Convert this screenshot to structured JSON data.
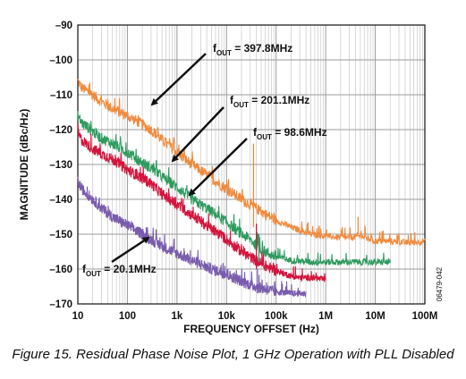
{
  "caption": "Figure 15. Residual Phase Noise Plot, 1 GHz Operation with PLL Disabled",
  "figure_id": "06479-042",
  "chart_data": {
    "type": "line",
    "title": "",
    "xlabel": "FREQUENCY OFFSET (Hz)",
    "ylabel": "MAGNITUDE (dBc/Hz)",
    "xscale": "log",
    "xlim": [
      10,
      100000000
    ],
    "ylim": [
      -170,
      -90
    ],
    "x_ticks": [
      10,
      100,
      1000,
      10000,
      100000,
      1000000,
      10000000,
      100000000
    ],
    "x_tick_labels": [
      "10",
      "100",
      "1k",
      "10k",
      "100k",
      "1M",
      "10M",
      "100M"
    ],
    "y_ticks": [
      -90,
      -100,
      -110,
      -120,
      -130,
      -140,
      -150,
      -160,
      -170
    ],
    "y_tick_labels": [
      "–90",
      "–100",
      "–110",
      "–120",
      "–130",
      "–140",
      "–150",
      "–160",
      "–170"
    ],
    "grid": true,
    "legend": "none",
    "series": [
      {
        "color": "#f08a3c",
        "x": [
          10,
          12,
          20,
          30,
          50,
          100,
          200,
          300,
          500,
          1000,
          2000,
          5000,
          10000,
          20000,
          30000,
          50000,
          100000,
          200000,
          500000,
          1000000,
          2000000,
          3000000,
          5000000,
          10000000,
          20000000,
          50000000,
          100000000
        ],
        "y": [
          -106,
          -108,
          -110,
          -112,
          -114,
          -116,
          -118.5,
          -120,
          -123,
          -126.5,
          -130,
          -134,
          -137,
          -140,
          -141.5,
          -143.5,
          -146,
          -148,
          -150,
          -150.5,
          -151,
          -151,
          -150.5,
          -152,
          -152,
          -152.5,
          -152
        ]
      },
      {
        "color": "#2e9a5e",
        "x": [
          10,
          12,
          20,
          30,
          50,
          100,
          200,
          300,
          500,
          1000,
          2000,
          5000,
          10000,
          20000,
          30000,
          50000,
          100000,
          200000,
          500000,
          1000000,
          2000000,
          5000000,
          10000000,
          20000000
        ],
        "y": [
          -116,
          -118,
          -120.5,
          -122.5,
          -124,
          -126.5,
          -129.5,
          -131,
          -133.5,
          -136.5,
          -140,
          -143.5,
          -146.5,
          -150,
          -151.5,
          -154.5,
          -156.5,
          -157.5,
          -158,
          -158,
          -158,
          -158,
          -158,
          -158
        ]
      },
      {
        "color": "#d2143c",
        "x": [
          10,
          12,
          20,
          30,
          50,
          100,
          200,
          300,
          500,
          1000,
          2000,
          5000,
          10000,
          20000,
          30000,
          50000,
          100000,
          200000,
          300000,
          500000,
          1000000
        ],
        "y": [
          -121,
          -123,
          -125.5,
          -127,
          -128.5,
          -131.5,
          -134,
          -135.5,
          -138.5,
          -141.5,
          -144.5,
          -148.5,
          -151.5,
          -155,
          -156.5,
          -158.5,
          -160.5,
          -162,
          -162.5,
          -162.5,
          -163
        ]
      },
      {
        "color": "#7a5cad",
        "x": [
          10,
          12,
          20,
          30,
          50,
          100,
          200,
          300,
          500,
          1000,
          2000,
          5000,
          10000,
          20000,
          30000,
          50000,
          100000,
          200000,
          300000,
          400000
        ],
        "y": [
          -135,
          -137,
          -140,
          -142.5,
          -145,
          -147.5,
          -150,
          -151.5,
          -153.5,
          -155.5,
          -157.5,
          -160,
          -161.5,
          -163.5,
          -164.5,
          -165.5,
          -166.5,
          -167,
          -167,
          -167
        ]
      }
    ],
    "annotations": [
      {
        "prefix": "f",
        "sub": "OUT",
        "suffix": " = 397.8MHz"
      },
      {
        "prefix": "f",
        "sub": "OUT",
        "suffix": " = 201.1MHz"
      },
      {
        "prefix": "f",
        "sub": "OUT",
        "suffix": " = 98.6MHz"
      },
      {
        "prefix": "f",
        "sub": "OUT",
        "suffix": " = 20.1MHz"
      }
    ]
  }
}
